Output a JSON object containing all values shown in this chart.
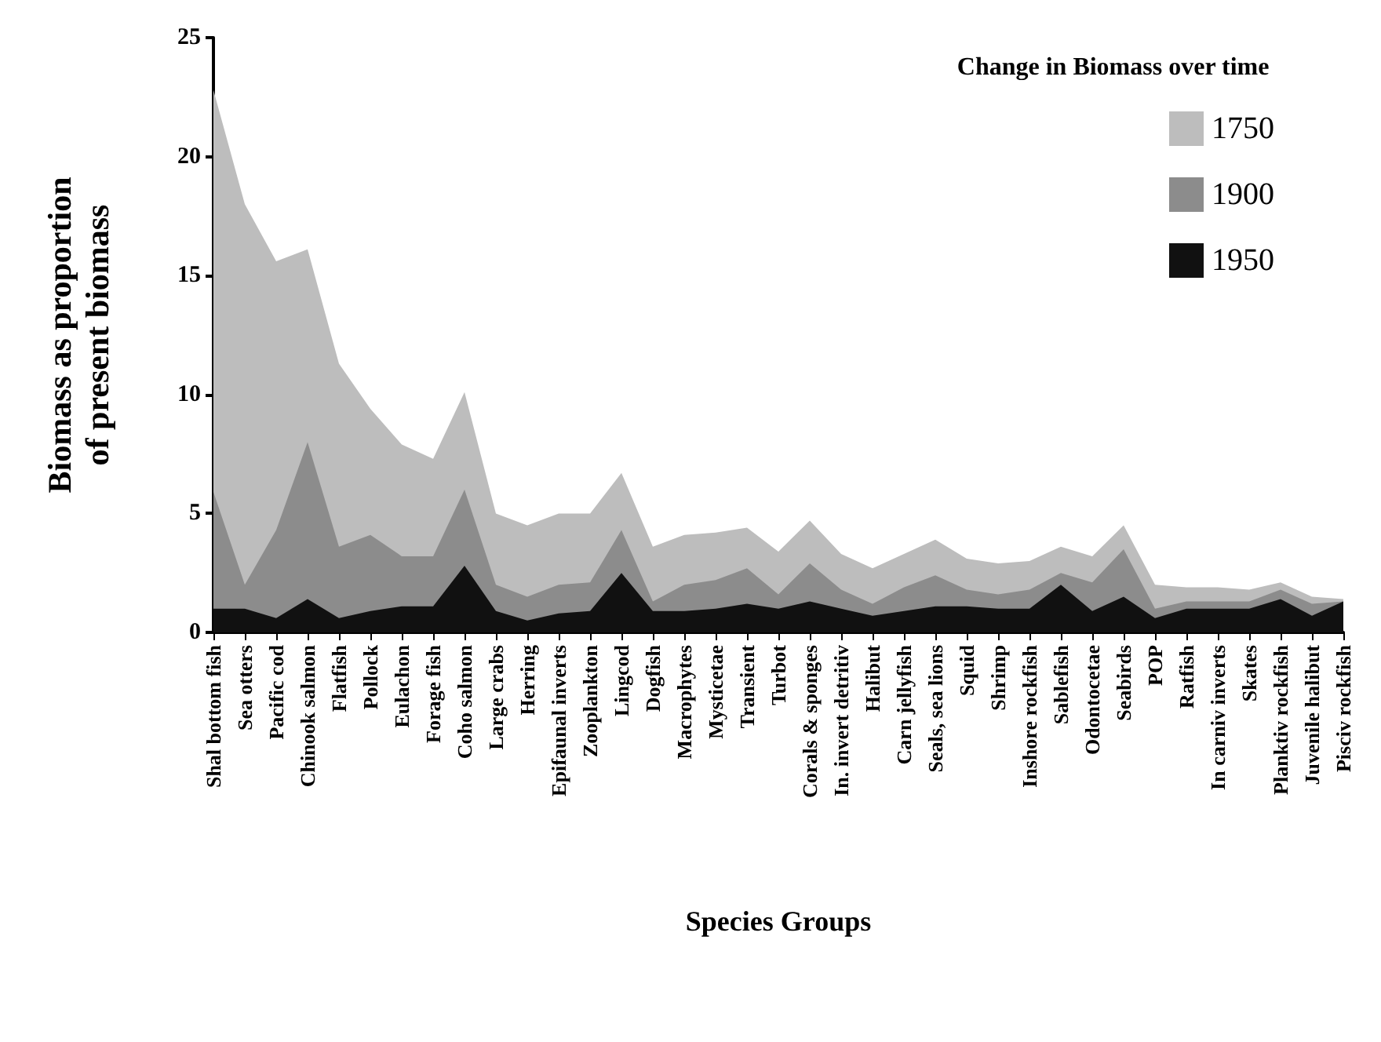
{
  "chart_data": {
    "type": "area",
    "legend_title": "Change in Biomass over time",
    "xlabel": "Species Groups",
    "ylabel": "Biomass as proportion\nof present biomass",
    "categories": [
      "Shal bottom fish",
      "Sea otters",
      "Pacific cod",
      "Chinook salmon",
      "Flatfish",
      "Pollock",
      "Eulachon",
      "Forage fish",
      "Coho salmon",
      "Large crabs",
      "Herring",
      "Epifaunal inverts",
      "Zooplankton",
      "Lingcod",
      "Dogfish",
      "Macrophytes",
      "Mysticetae",
      "Transient",
      "Turbot",
      "Corals & sponges",
      "In. invert detritiv",
      "Halibut",
      "Carn jellyfish",
      "Seals, sea lions",
      "Squid",
      "Shrimp",
      "Inshore rockfish",
      "Sablefish",
      "Odontocetae",
      "Seabirds",
      "POP",
      "Ratfish",
      "In carniv inverts",
      "Skates",
      "Planktiv rockfish",
      "Juvenile halibut",
      "Pisciv rockfish"
    ],
    "series": [
      {
        "name": "1750",
        "color": "#bdbdbd",
        "values": [
          22.8,
          18.0,
          15.6,
          16.1,
          11.3,
          9.4,
          7.9,
          7.3,
          10.1,
          5.0,
          4.5,
          5.0,
          5.0,
          6.7,
          3.6,
          4.1,
          4.2,
          4.4,
          3.4,
          4.7,
          3.3,
          2.7,
          3.3,
          3.9,
          3.1,
          2.9,
          3.0,
          3.6,
          3.2,
          4.5,
          2.0,
          1.9,
          1.9,
          1.8,
          2.1,
          1.5,
          1.4
        ]
      },
      {
        "name": "1900",
        "color": "#8c8c8c",
        "values": [
          5.9,
          2.0,
          4.3,
          8.0,
          3.6,
          4.1,
          3.2,
          3.2,
          6.0,
          2.0,
          1.5,
          2.0,
          2.1,
          4.3,
          1.3,
          2.0,
          2.2,
          2.7,
          1.6,
          2.9,
          1.8,
          1.2,
          1.9,
          2.4,
          1.8,
          1.6,
          1.8,
          2.5,
          2.1,
          3.5,
          1.0,
          1.3,
          1.3,
          1.3,
          1.8,
          1.2,
          1.3
        ]
      },
      {
        "name": "1950",
        "color": "#111111",
        "values": [
          1.0,
          1.0,
          0.6,
          1.4,
          0.6,
          0.9,
          1.1,
          1.1,
          2.8,
          0.9,
          0.5,
          0.8,
          0.9,
          2.5,
          0.9,
          0.9,
          1.0,
          1.2,
          1.0,
          1.3,
          1.0,
          0.7,
          0.9,
          1.1,
          1.1,
          1.0,
          1.0,
          2.0,
          0.9,
          1.5,
          0.6,
          1.0,
          1.0,
          1.0,
          1.4,
          0.7,
          1.3
        ]
      }
    ],
    "ylim": [
      0,
      25
    ],
    "yticks": [
      0,
      5,
      10,
      15,
      20,
      25
    ],
    "grid": false,
    "legend": "top right"
  }
}
